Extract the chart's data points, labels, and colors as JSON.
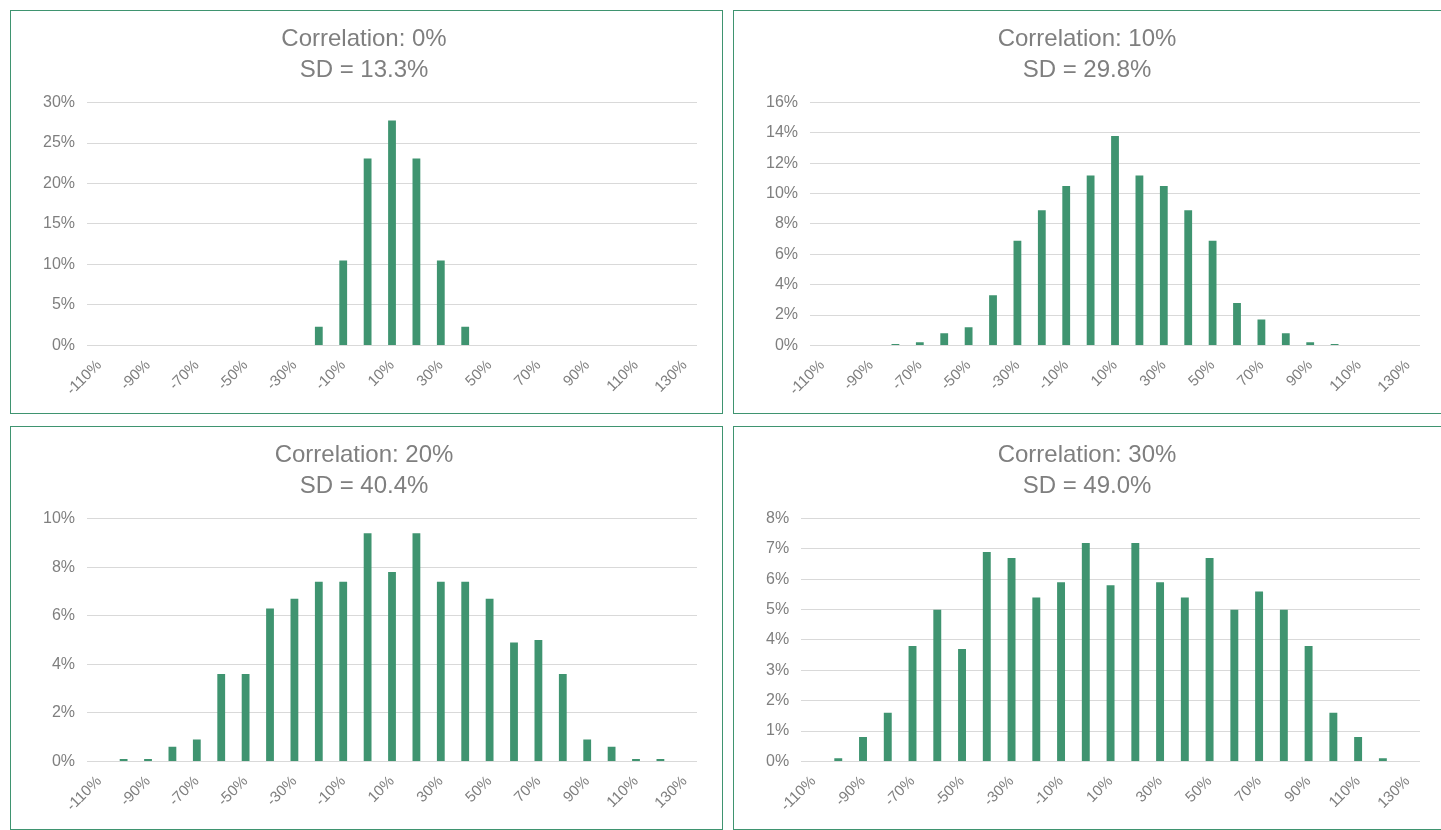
{
  "chart_data": [
    {
      "type": "bar",
      "title": "Correlation: 0%",
      "subtitle": "SD = 13.3%",
      "categories": [
        "-110%",
        null,
        "-90%",
        null,
        "-70%",
        null,
        "-50%",
        null,
        "-30%",
        null,
        "-10%",
        null,
        "10%",
        null,
        "30%",
        null,
        "50%",
        null,
        "70%",
        null,
        "90%",
        null,
        "110%",
        null,
        "130%"
      ],
      "values": [
        0,
        0,
        0,
        0,
        0,
        0,
        0,
        0,
        0,
        2.3,
        10.5,
        23.1,
        27.8,
        23.1,
        10.5,
        2.3,
        0,
        0,
        0,
        0,
        0,
        0,
        0,
        0,
        0
      ],
      "color": "#3f9470",
      "ylim": [
        0,
        30
      ],
      "yticks": [
        {
          "value": 0,
          "label": "0%"
        },
        {
          "value": 5,
          "label": "5%"
        },
        {
          "value": 10,
          "label": "10%"
        },
        {
          "value": 15,
          "label": "15%"
        },
        {
          "value": 20,
          "label": "20%"
        },
        {
          "value": 25,
          "label": "25%"
        },
        {
          "value": 30,
          "label": "30%"
        }
      ],
      "grid": "y"
    },
    {
      "type": "bar",
      "title": "Correlation: 10%",
      "subtitle": "SD = 29.8%",
      "categories": [
        "-110%",
        null,
        "-90%",
        null,
        "-70%",
        null,
        "-50%",
        null,
        "-30%",
        null,
        "-10%",
        null,
        "10%",
        null,
        "30%",
        null,
        "50%",
        null,
        "70%",
        null,
        "90%",
        null,
        "110%",
        null,
        "130%"
      ],
      "values": [
        0,
        0,
        0,
        0.1,
        0.2,
        0.8,
        1.2,
        3.3,
        6.9,
        8.9,
        10.5,
        11.2,
        13.8,
        11.2,
        10.5,
        8.9,
        6.9,
        2.8,
        1.7,
        0.8,
        0.2,
        0.1,
        0,
        0,
        0
      ],
      "color": "#3f9470",
      "ylim": [
        0,
        16
      ],
      "yticks": [
        {
          "value": 0,
          "label": "0%"
        },
        {
          "value": 2,
          "label": "2%"
        },
        {
          "value": 4,
          "label": "4%"
        },
        {
          "value": 6,
          "label": "6%"
        },
        {
          "value": 8,
          "label": "8%"
        },
        {
          "value": 10,
          "label": "10%"
        },
        {
          "value": 12,
          "label": "12%"
        },
        {
          "value": 14,
          "label": "14%"
        },
        {
          "value": 16,
          "label": "16%"
        }
      ],
      "grid": "y"
    },
    {
      "type": "bar",
      "title": "Correlation: 20%",
      "subtitle": "SD = 40.4%",
      "categories": [
        "-110%",
        null,
        "-90%",
        null,
        "-70%",
        null,
        "-50%",
        null,
        "-30%",
        null,
        "-10%",
        null,
        "10%",
        null,
        "30%",
        null,
        "50%",
        null,
        "70%",
        null,
        "90%",
        null,
        "110%",
        null,
        "130%"
      ],
      "values": [
        0,
        0.1,
        0.1,
        0.6,
        0.9,
        3.6,
        3.6,
        6.3,
        6.7,
        7.4,
        7.4,
        9.4,
        7.8,
        9.4,
        7.4,
        7.4,
        6.7,
        4.9,
        5.0,
        3.6,
        0.9,
        0.6,
        0.1,
        0.1,
        0
      ],
      "color": "#3f9470",
      "ylim": [
        0,
        10
      ],
      "yticks": [
        {
          "value": 0,
          "label": "0%"
        },
        {
          "value": 2,
          "label": "2%"
        },
        {
          "value": 4,
          "label": "4%"
        },
        {
          "value": 6,
          "label": "6%"
        },
        {
          "value": 8,
          "label": "8%"
        },
        {
          "value": 10,
          "label": "10%"
        }
      ],
      "grid": "y"
    },
    {
      "type": "bar",
      "title": "Correlation: 30%",
      "subtitle": "SD = 49.0%",
      "categories": [
        "-110%",
        null,
        "-90%",
        null,
        "-70%",
        null,
        "-50%",
        null,
        "-30%",
        null,
        "-10%",
        null,
        "10%",
        null,
        "30%",
        null,
        "50%",
        null,
        "70%",
        null,
        "90%",
        null,
        "110%",
        null,
        "130%"
      ],
      "values": [
        0,
        0.1,
        0.8,
        1.6,
        3.8,
        5.0,
        3.7,
        6.9,
        6.7,
        5.4,
        5.9,
        7.2,
        5.8,
        7.2,
        5.9,
        5.4,
        6.7,
        5.0,
        5.6,
        5.0,
        3.8,
        1.6,
        0.8,
        0.1,
        0
      ],
      "color": "#3f9470",
      "ylim": [
        0,
        8
      ],
      "yticks": [
        {
          "value": 0,
          "label": "0%"
        },
        {
          "value": 1,
          "label": "1%"
        },
        {
          "value": 2,
          "label": "2%"
        },
        {
          "value": 3,
          "label": "3%"
        },
        {
          "value": 4,
          "label": "4%"
        },
        {
          "value": 5,
          "label": "5%"
        },
        {
          "value": 6,
          "label": "6%"
        },
        {
          "value": 7,
          "label": "7%"
        },
        {
          "value": 8,
          "label": "8%"
        }
      ],
      "grid": "y"
    }
  ]
}
